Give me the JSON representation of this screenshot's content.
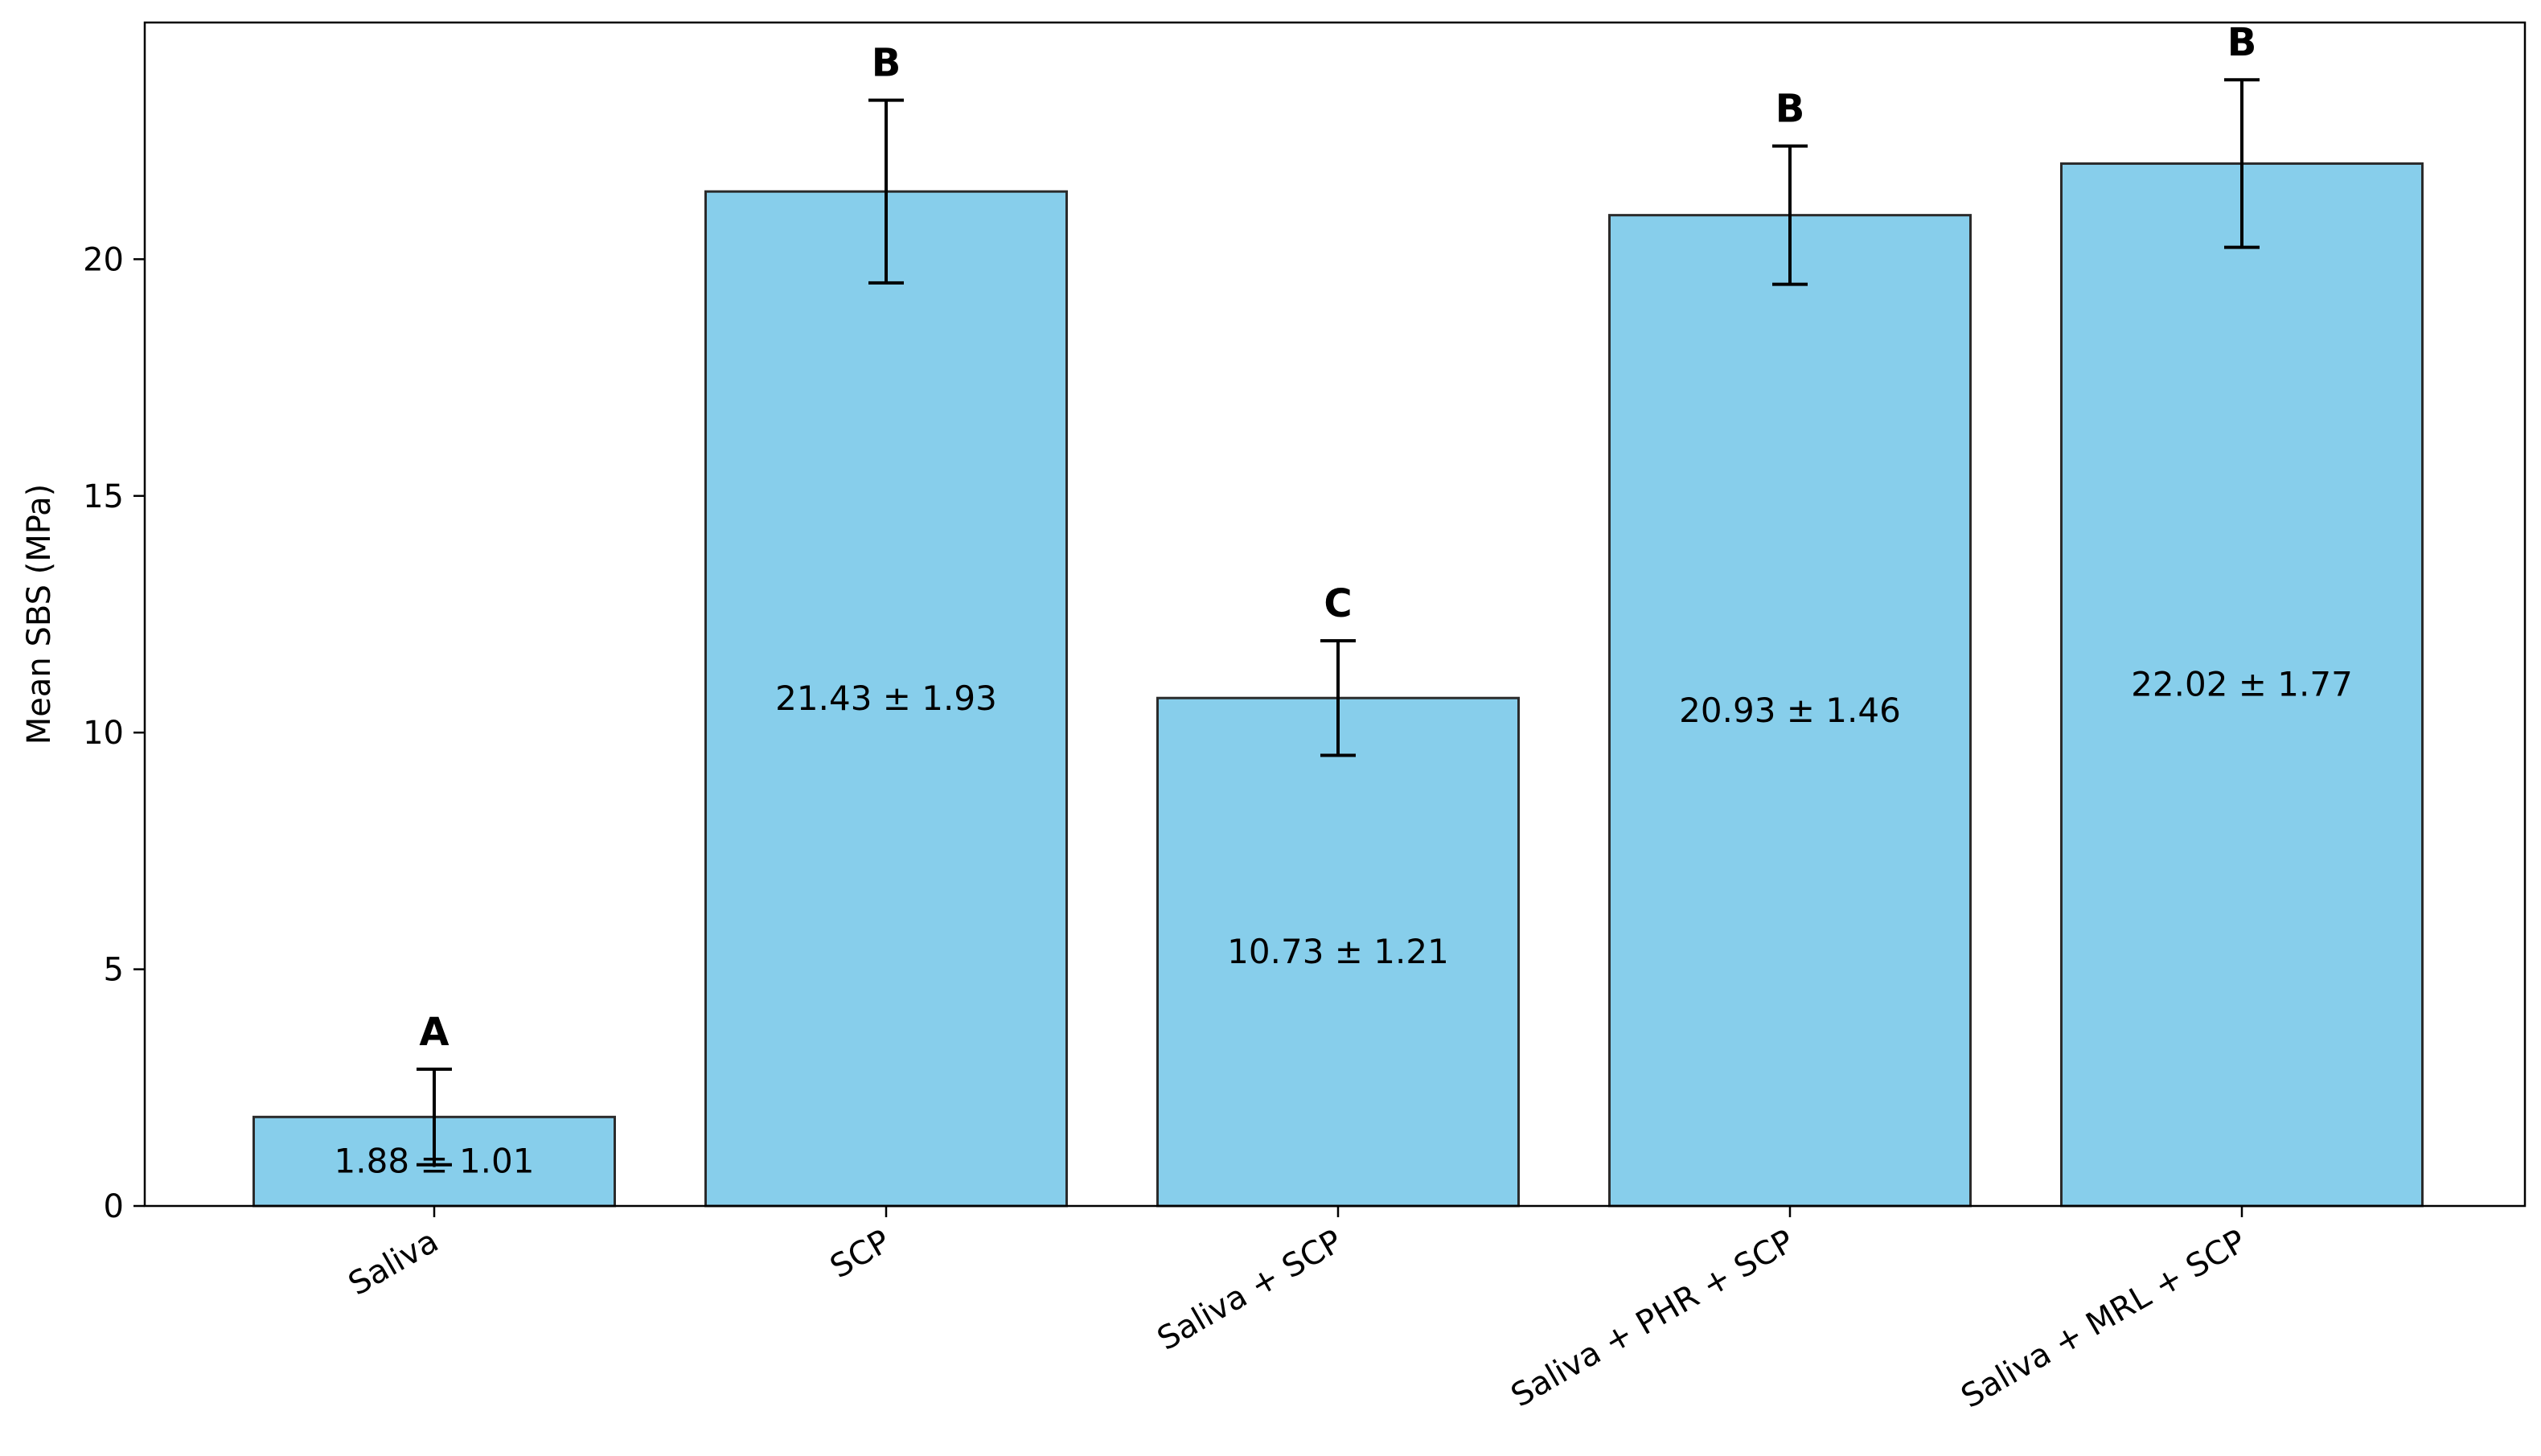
{
  "chart_data": {
    "type": "bar",
    "title": "",
    "xlabel": "",
    "ylabel": "Mean SBS (MPa)",
    "ylim": [
      0,
      25
    ],
    "yticks": [
      0,
      5,
      10,
      15,
      20
    ],
    "grid": false,
    "categories": [
      "Saliva",
      "SCP",
      "Saliva + SCP",
      "Saliva + PHR + SCP",
      "Saliva + MRL + SCP"
    ],
    "values": [
      1.88,
      21.43,
      10.73,
      20.93,
      22.02
    ],
    "errors": [
      1.01,
      1.93,
      1.21,
      1.46,
      1.77
    ],
    "value_labels": [
      "1.88 ± 1.01",
      "21.43 ± 1.93",
      "10.73 ± 1.21",
      "20.93 ± 1.46",
      "22.02 ± 1.77"
    ],
    "group_letters": [
      "A",
      "B",
      "C",
      "B",
      "B"
    ],
    "colors": {
      "bar_fill": "#87CEEB",
      "bar_edge": "#2b2b2b",
      "error_bar": "#000000",
      "axis": "#000000"
    }
  }
}
